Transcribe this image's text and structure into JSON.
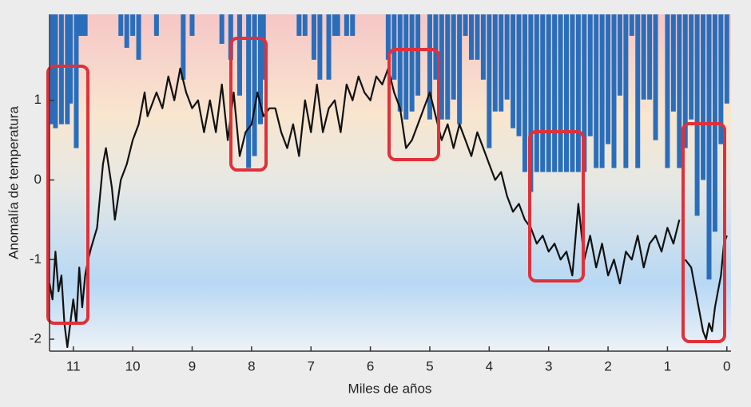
{
  "chart_data": {
    "type": "line",
    "x_label": "Miles de años",
    "y_label": "Anomalía de temperatura",
    "xlim": [
      11.4,
      -0.07
    ],
    "ylim": [
      -2.15,
      2.08
    ],
    "xticks": [
      11,
      10,
      9,
      8,
      7,
      6,
      5,
      4,
      3,
      2,
      1,
      0
    ],
    "yticks": [
      -2,
      -1,
      0,
      1
    ],
    "series": [
      {
        "type": "bar",
        "color": "#2a6ebb",
        "x": [
          11.35,
          11.3,
          11.2,
          11.1,
          11.05,
          10.95,
          10.9,
          10.85,
          10.8,
          10.2,
          10.1,
          10.0,
          9.9,
          9.6,
          9.15,
          9.0,
          8.5,
          8.35,
          8.2,
          8.05,
          7.95,
          7.85,
          7.8,
          7.2,
          7.1,
          6.95,
          6.85,
          6.7,
          6.6,
          6.55,
          6.4,
          6.3,
          5.7,
          5.6,
          5.5,
          5.4,
          5.3,
          5.2,
          5.0,
          4.9,
          4.8,
          4.7,
          4.6,
          4.5,
          4.4,
          4.3,
          4.2,
          4.1,
          4.0,
          3.9,
          3.8,
          3.7,
          3.6,
          3.5,
          3.4,
          3.3,
          3.2,
          3.1,
          3.0,
          2.9,
          2.8,
          2.7,
          2.6,
          2.5,
          2.4,
          2.3,
          2.2,
          2.1,
          2.0,
          1.9,
          1.8,
          1.7,
          1.6,
          1.5,
          1.4,
          1.3,
          1.2,
          1.0,
          0.9,
          0.8,
          0.7,
          0.6,
          0.5,
          0.4,
          0.3,
          0.2,
          0.1,
          0.0
        ],
        "values": [
          0.7,
          0.65,
          0.7,
          0.7,
          0.96,
          0.4,
          1.81,
          1.81,
          1.81,
          1.81,
          1.66,
          1.81,
          1.51,
          1.81,
          1.26,
          1.81,
          1.71,
          1.51,
          1.06,
          0.15,
          0.3,
          0.7,
          1.26,
          1.81,
          1.81,
          1.51,
          1.26,
          1.26,
          1.81,
          1.81,
          1.81,
          1.81,
          1.51,
          1.26,
          0.86,
          0.76,
          0.86,
          1.06,
          0.76,
          1.26,
          0.76,
          0.76,
          1.01,
          0.7,
          1.81,
          1.51,
          1.51,
          1.26,
          0.4,
          0.86,
          0.86,
          1.01,
          0.65,
          0.55,
          0.1,
          -0.15,
          0.1,
          0.1,
          0.1,
          0.1,
          0.1,
          0.1,
          0.1,
          0.1,
          0.1,
          0.55,
          0.15,
          0.15,
          0.45,
          0.15,
          1.06,
          0.15,
          1.81,
          0.15,
          1.01,
          1.01,
          0.5,
          0.15,
          0.86,
          0.15,
          0.4,
          0.76,
          -0.45,
          0,
          -1.25,
          -0.65,
          0.45,
          0.96
        ]
      },
      {
        "type": "line",
        "color": "#111111",
        "x": [
          11.4,
          11.35,
          11.3,
          11.25,
          11.2,
          11.15,
          11.1,
          11.05,
          11.0,
          10.95,
          10.9,
          10.85,
          10.8,
          10.75,
          10.7,
          10.6,
          10.5,
          10.45,
          10.35,
          10.3,
          10.2,
          10.1,
          10.0,
          9.9,
          9.8,
          9.75,
          9.6,
          9.5,
          9.4,
          9.3,
          9.2,
          9.1,
          9.0,
          8.9,
          8.8,
          8.7,
          8.6,
          8.5,
          8.4,
          8.3,
          8.2,
          8.1,
          8.0,
          7.9,
          7.8,
          7.7,
          7.6,
          7.5,
          7.4,
          7.3,
          7.2,
          7.1,
          7.0,
          6.9,
          6.8,
          6.7,
          6.6,
          6.5,
          6.4,
          6.3,
          6.2,
          6.1,
          6.0,
          5.9,
          5.8,
          5.7,
          5.6,
          5.5,
          5.4,
          5.3,
          5.2,
          5.1,
          5.0,
          4.9,
          4.8,
          4.7,
          4.6,
          4.5,
          4.4,
          4.3,
          4.2,
          4.1,
          4.0,
          3.9,
          3.8,
          3.7,
          3.6,
          3.5,
          3.4,
          3.3,
          3.2,
          3.1,
          3.0,
          2.9,
          2.8,
          2.7,
          2.6,
          2.5,
          2.4,
          2.3,
          2.2,
          2.1,
          2.0,
          1.9,
          1.8,
          1.7,
          1.6,
          1.5,
          1.4,
          1.3,
          1.2,
          1.1,
          1.0,
          0.9,
          0.8,
          0.75,
          0.7,
          0.6,
          0.5,
          0.45,
          0.4,
          0.35,
          0.3,
          0.25,
          0.2,
          0.15,
          0.1,
          0.05,
          0.0
        ],
        "values": [
          -1.3,
          -1.5,
          -0.9,
          -1.4,
          -1.2,
          -1.8,
          -2.1,
          -1.8,
          -1.5,
          -1.8,
          -1.1,
          -1.6,
          -1.2,
          -1.0,
          -0.85,
          -0.6,
          0.2,
          0.4,
          -0.1,
          -0.5,
          0.0,
          0.2,
          0.5,
          0.7,
          1.1,
          0.8,
          1.1,
          0.9,
          1.3,
          1.0,
          1.4,
          1.1,
          0.9,
          1.0,
          0.6,
          1.0,
          0.6,
          1.2,
          0.5,
          1.1,
          0.3,
          0.6,
          0.7,
          1.1,
          0.8,
          0.9,
          0.9,
          0.6,
          0.4,
          0.7,
          0.3,
          1.0,
          0.6,
          1.2,
          0.6,
          0.9,
          1.0,
          0.6,
          1.2,
          1.0,
          1.3,
          1.1,
          1.0,
          1.3,
          1.2,
          1.4,
          1.1,
          0.9,
          0.4,
          0.5,
          0.7,
          0.9,
          1.1,
          0.8,
          0.5,
          0.7,
          0.4,
          0.7,
          0.5,
          0.3,
          0.6,
          0.4,
          0.2,
          0.0,
          0.1,
          -0.2,
          -0.4,
          -0.3,
          -0.5,
          -0.6,
          -0.8,
          -0.7,
          -0.9,
          -0.8,
          -1.0,
          -0.9,
          -1.2,
          -0.3,
          -1.0,
          -0.7,
          -1.1,
          -0.8,
          -1.2,
          -1.0,
          -1.3,
          -0.9,
          -1.0,
          -0.7,
          -1.1,
          -0.8,
          -0.7,
          -0.9,
          -0.6,
          -0.8,
          -0.5,
          null,
          -1.0,
          -1.1,
          -1.5,
          -1.7,
          -1.9,
          -2.0,
          -1.8,
          -1.9,
          -1.6,
          -1.4,
          -1.2,
          -0.8,
          -0.7
        ]
      }
    ]
  }
}
